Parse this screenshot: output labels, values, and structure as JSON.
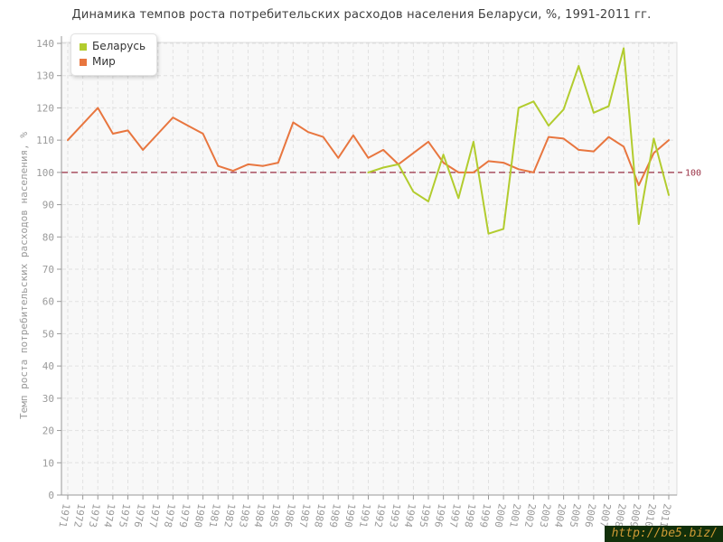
{
  "header": {
    "title": "Динамика темпов роста потребительских расходов населения Беларуси, %, 1991-2011 гг."
  },
  "legend": {
    "items": [
      {
        "label": "Беларусь",
        "color": "#b2cc2e"
      },
      {
        "label": "Мир",
        "color": "#e8763f"
      }
    ]
  },
  "watermark": {
    "text": "http://be5.biz/"
  },
  "colors": {
    "plot_bg": "#f8f8f8",
    "grid": "#e1e1e1",
    "axis": "#999999",
    "tick_label": "#9a9a9a",
    "reference": "#993044"
  },
  "chart_data": {
    "type": "line",
    "title": "Динамика темпов роста потребительских расходов населения Беларуси, %, 1991-2011 гг.",
    "xlabel": "",
    "ylabel": "Темп роста потребительских расходов населения, %",
    "ylim": [
      0,
      140
    ],
    "ytick_step": 10,
    "grid": true,
    "legend_position": "top-left",
    "reference_line": {
      "y": 100,
      "label": "100",
      "style": "dashed",
      "color": "#993044"
    },
    "x": [
      1971,
      1972,
      1973,
      1974,
      1975,
      1976,
      1977,
      1978,
      1979,
      1980,
      1981,
      1982,
      1983,
      1984,
      1985,
      1986,
      1987,
      1988,
      1989,
      1990,
      1991,
      1992,
      1993,
      1994,
      1995,
      1996,
      1997,
      1998,
      1999,
      2000,
      2001,
      2002,
      2003,
      2004,
      2005,
      2006,
      2007,
      2008,
      2009,
      2010,
      2011
    ],
    "series": [
      {
        "name": "Беларусь",
        "color": "#b2cc2e",
        "values": [
          null,
          null,
          null,
          null,
          null,
          null,
          null,
          null,
          null,
          null,
          null,
          null,
          null,
          null,
          null,
          null,
          null,
          null,
          null,
          null,
          100,
          101.5,
          102.5,
          94,
          91,
          105.5,
          92,
          109.5,
          81,
          82.5,
          120,
          122,
          114.5,
          119.5,
          133,
          118.5,
          120.5,
          138.5,
          84,
          110.5,
          93
        ]
      },
      {
        "name": "Мир",
        "color": "#e8763f",
        "values": [
          110,
          115,
          120,
          112,
          113,
          107,
          112,
          117,
          114.5,
          112,
          102,
          100.5,
          102.5,
          102,
          103,
          115.5,
          112.5,
          111,
          104.5,
          111.5,
          104.5,
          107,
          102.5,
          106,
          109.5,
          103,
          100,
          100,
          103.5,
          103,
          101,
          100,
          111,
          110.5,
          107,
          106.5,
          111,
          108,
          96,
          106,
          110
        ]
      }
    ]
  }
}
